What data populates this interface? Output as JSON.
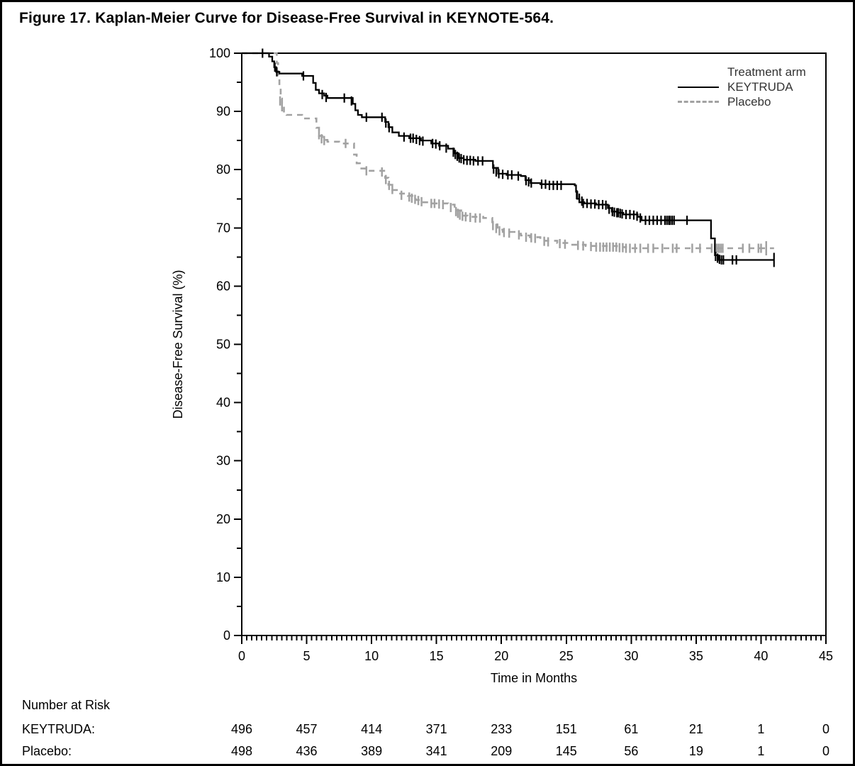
{
  "figure": {
    "title": "Figure 17. Kaplan-Meier Curve for Disease-Free Survival in KEYNOTE-564."
  },
  "chart_data": {
    "type": "line",
    "subtype": "kaplan_meier_step",
    "title": "Figure 17. Kaplan-Meier Curve for Disease-Free Survival in KEYNOTE-564.",
    "xlabel": "Time in Months",
    "ylabel": "Disease-Free Survival (%)",
    "xlim": [
      0,
      45
    ],
    "ylim": [
      0,
      100
    ],
    "x_ticks": [
      0,
      5,
      10,
      15,
      20,
      25,
      30,
      35,
      40,
      45
    ],
    "y_ticks": [
      0,
      10,
      20,
      30,
      40,
      50,
      60,
      70,
      80,
      90,
      100
    ],
    "x_minor_per_major": 13,
    "y_minor_per_major": 2,
    "grid": false,
    "legend": {
      "title": "Treatment arm",
      "position": "top-right-inside",
      "entries": [
        {
          "label": "KEYTRUDA",
          "style": "solid",
          "color": "#000000"
        },
        {
          "label": "Placebo",
          "style": "dashed",
          "color": "#a2a2a2"
        }
      ]
    },
    "series": [
      {
        "name": "KEYTRUDA",
        "color": "#000000",
        "style": "solid",
        "steps": [
          [
            0,
            100
          ],
          [
            1.9,
            100
          ],
          [
            2.1,
            99.4
          ],
          [
            2.35,
            98.6
          ],
          [
            2.5,
            97.6
          ],
          [
            2.65,
            96.8
          ],
          [
            2.9,
            96.5
          ],
          [
            4.55,
            96.5
          ],
          [
            4.65,
            96.1
          ],
          [
            5.35,
            96.1
          ],
          [
            5.5,
            94.9
          ],
          [
            5.7,
            93.7
          ],
          [
            5.95,
            93.1
          ],
          [
            6.35,
            92.7
          ],
          [
            6.6,
            92.3
          ],
          [
            8.4,
            92.3
          ],
          [
            8.55,
            91.3
          ],
          [
            8.75,
            90.2
          ],
          [
            8.95,
            89.4
          ],
          [
            9.25,
            89.0
          ],
          [
            10.85,
            89.0
          ],
          [
            11.05,
            88.2
          ],
          [
            11.3,
            87.3
          ],
          [
            11.6,
            86.4
          ],
          [
            12.1,
            85.8
          ],
          [
            12.9,
            85.4
          ],
          [
            13.8,
            85.0
          ],
          [
            14.6,
            84.5
          ],
          [
            15.2,
            84.1
          ],
          [
            15.9,
            83.6
          ],
          [
            16.35,
            82.8
          ],
          [
            16.7,
            82.0
          ],
          [
            17.1,
            81.7
          ],
          [
            18.0,
            81.5
          ],
          [
            19.35,
            80.3
          ],
          [
            19.75,
            79.3
          ],
          [
            20.4,
            79.1
          ],
          [
            21.5,
            78.9
          ],
          [
            21.85,
            78.2
          ],
          [
            22.25,
            77.7
          ],
          [
            23.0,
            77.5
          ],
          [
            25.65,
            77.3
          ],
          [
            25.75,
            76.2
          ],
          [
            25.85,
            75.0
          ],
          [
            26.0,
            74.4
          ],
          [
            26.4,
            74.2
          ],
          [
            27.3,
            74.0
          ],
          [
            28.2,
            73.4
          ],
          [
            28.5,
            72.8
          ],
          [
            28.9,
            72.6
          ],
          [
            29.4,
            72.3
          ],
          [
            30.5,
            71.9
          ],
          [
            30.8,
            71.3
          ],
          [
            35.95,
            71.3
          ],
          [
            36.15,
            68.2
          ],
          [
            36.45,
            65.3
          ],
          [
            36.7,
            64.5
          ],
          [
            41.0,
            64.5
          ]
        ],
        "censors": [
          [
            1.6,
            100
          ],
          [
            2.55,
            97.6
          ],
          [
            2.7,
            96.8
          ],
          [
            4.75,
            96.1
          ],
          [
            6.2,
            92.9
          ],
          [
            6.5,
            92.4
          ],
          [
            7.9,
            92.3
          ],
          [
            8.45,
            91.8
          ],
          [
            9.6,
            89.0
          ],
          [
            10.8,
            89.0
          ],
          [
            11.1,
            88.0
          ],
          [
            11.35,
            87.2
          ],
          [
            12.5,
            85.6
          ],
          [
            13.0,
            85.4
          ],
          [
            13.2,
            85.4
          ],
          [
            13.45,
            85.2
          ],
          [
            13.7,
            85.0
          ],
          [
            13.95,
            84.9
          ],
          [
            14.7,
            84.5
          ],
          [
            14.95,
            84.4
          ],
          [
            15.25,
            84.1
          ],
          [
            15.75,
            83.7
          ],
          [
            16.3,
            83.0
          ],
          [
            16.45,
            82.6
          ],
          [
            16.6,
            82.3
          ],
          [
            16.75,
            82.0
          ],
          [
            16.9,
            81.9
          ],
          [
            17.1,
            81.7
          ],
          [
            17.35,
            81.6
          ],
          [
            17.6,
            81.6
          ],
          [
            17.85,
            81.5
          ],
          [
            18.2,
            81.5
          ],
          [
            18.55,
            81.5
          ],
          [
            19.4,
            80.1
          ],
          [
            19.6,
            79.6
          ],
          [
            19.8,
            79.3
          ],
          [
            20.1,
            79.2
          ],
          [
            20.5,
            79.1
          ],
          [
            20.8,
            79.1
          ],
          [
            21.3,
            78.9
          ],
          [
            21.9,
            78.1
          ],
          [
            22.1,
            77.9
          ],
          [
            22.3,
            77.7
          ],
          [
            23.1,
            77.5
          ],
          [
            23.4,
            77.5
          ],
          [
            23.7,
            77.3
          ],
          [
            24.0,
            77.3
          ],
          [
            24.3,
            77.3
          ],
          [
            24.6,
            77.3
          ],
          [
            25.8,
            75.7
          ],
          [
            26.0,
            75.1
          ],
          [
            26.2,
            74.6
          ],
          [
            26.3,
            74.2
          ],
          [
            26.6,
            74.2
          ],
          [
            26.9,
            74.1
          ],
          [
            27.2,
            74.1
          ],
          [
            27.5,
            74.0
          ],
          [
            27.8,
            74.0
          ],
          [
            28.05,
            73.9
          ],
          [
            28.3,
            73.2
          ],
          [
            28.55,
            72.8
          ],
          [
            28.7,
            72.7
          ],
          [
            28.9,
            72.6
          ],
          [
            29.0,
            72.6
          ],
          [
            29.15,
            72.5
          ],
          [
            29.3,
            72.4
          ],
          [
            29.6,
            72.3
          ],
          [
            29.9,
            72.3
          ],
          [
            30.2,
            72.2
          ],
          [
            30.45,
            72.0
          ],
          [
            30.7,
            71.7
          ],
          [
            31.1,
            71.3
          ],
          [
            31.4,
            71.3
          ],
          [
            31.7,
            71.3
          ],
          [
            32.0,
            71.3
          ],
          [
            32.3,
            71.3
          ],
          [
            32.6,
            71.3
          ],
          [
            32.75,
            71.3
          ],
          [
            32.9,
            71.3
          ],
          [
            33.0,
            71.3
          ],
          [
            33.15,
            71.3
          ],
          [
            33.3,
            71.3
          ],
          [
            34.3,
            71.3
          ],
          [
            36.5,
            65.1
          ],
          [
            36.65,
            64.8
          ],
          [
            36.8,
            64.6
          ],
          [
            36.95,
            64.5
          ],
          [
            37.1,
            64.5
          ],
          [
            37.8,
            64.5
          ],
          [
            38.1,
            64.5
          ],
          [
            41.0,
            64.5
          ]
        ],
        "end_censor_index": 90
      },
      {
        "name": "Placebo",
        "color": "#a2a2a2",
        "style": "dashed",
        "steps": [
          [
            0,
            100
          ],
          [
            2.55,
            100
          ],
          [
            2.7,
            98.3
          ],
          [
            2.8,
            96.2
          ],
          [
            2.9,
            94.2
          ],
          [
            3.0,
            92.2
          ],
          [
            3.1,
            90.8
          ],
          [
            3.25,
            89.8
          ],
          [
            3.45,
            89.4
          ],
          [
            4.5,
            89.4
          ],
          [
            4.65,
            88.8
          ],
          [
            5.6,
            88.8
          ],
          [
            5.75,
            87.2
          ],
          [
            5.95,
            85.8
          ],
          [
            6.2,
            85.1
          ],
          [
            6.6,
            84.8
          ],
          [
            7.5,
            84.5
          ],
          [
            8.45,
            84.5
          ],
          [
            8.65,
            82.6
          ],
          [
            8.85,
            81.1
          ],
          [
            9.1,
            80.2
          ],
          [
            9.5,
            79.8
          ],
          [
            10.85,
            79.8
          ],
          [
            11.05,
            78.6
          ],
          [
            11.3,
            77.4
          ],
          [
            11.6,
            76.5
          ],
          [
            12.1,
            75.9
          ],
          [
            12.8,
            75.5
          ],
          [
            13.4,
            74.8
          ],
          [
            13.9,
            74.4
          ],
          [
            14.5,
            74.2
          ],
          [
            15.9,
            74.0
          ],
          [
            16.4,
            73.0
          ],
          [
            16.9,
            72.1
          ],
          [
            17.4,
            71.9
          ],
          [
            18.6,
            71.7
          ],
          [
            19.3,
            70.6
          ],
          [
            19.7,
            69.7
          ],
          [
            20.1,
            69.3
          ],
          [
            21.2,
            69.0
          ],
          [
            21.5,
            68.7
          ],
          [
            22.2,
            68.4
          ],
          [
            23.0,
            67.8
          ],
          [
            24.3,
            67.4
          ],
          [
            25.3,
            67.1
          ],
          [
            26.5,
            66.9
          ],
          [
            28.9,
            66.7
          ],
          [
            29.6,
            66.5
          ],
          [
            41.0,
            66.5
          ]
        ],
        "censors": [
          [
            2.95,
            91.8
          ],
          [
            3.1,
            90.8
          ],
          [
            5.95,
            86.0
          ],
          [
            6.15,
            85.3
          ],
          [
            6.35,
            85.0
          ],
          [
            8.0,
            84.5
          ],
          [
            9.6,
            79.8
          ],
          [
            10.8,
            79.6
          ],
          [
            11.1,
            78.3
          ],
          [
            11.35,
            77.3
          ],
          [
            11.6,
            76.6
          ],
          [
            12.3,
            75.6
          ],
          [
            12.9,
            75.3
          ],
          [
            13.1,
            75.1
          ],
          [
            13.35,
            74.9
          ],
          [
            13.6,
            74.7
          ],
          [
            13.85,
            74.5
          ],
          [
            14.6,
            74.2
          ],
          [
            14.85,
            74.2
          ],
          [
            15.2,
            74.1
          ],
          [
            15.5,
            74.0
          ],
          [
            16.1,
            73.5
          ],
          [
            16.5,
            72.8
          ],
          [
            16.65,
            72.5
          ],
          [
            16.8,
            72.2
          ],
          [
            17.0,
            72.0
          ],
          [
            17.25,
            71.9
          ],
          [
            17.6,
            71.8
          ],
          [
            18.0,
            71.7
          ],
          [
            18.35,
            71.7
          ],
          [
            19.35,
            70.4
          ],
          [
            19.6,
            69.9
          ],
          [
            19.85,
            69.5
          ],
          [
            20.2,
            69.2
          ],
          [
            20.6,
            69.1
          ],
          [
            21.35,
            68.8
          ],
          [
            21.9,
            68.4
          ],
          [
            22.3,
            68.3
          ],
          [
            22.6,
            68.2
          ],
          [
            23.3,
            67.7
          ],
          [
            23.6,
            67.6
          ],
          [
            24.5,
            67.3
          ],
          [
            24.9,
            67.2
          ],
          [
            25.9,
            67.0
          ],
          [
            26.3,
            66.9
          ],
          [
            26.9,
            66.8
          ],
          [
            27.3,
            66.7
          ],
          [
            27.6,
            66.7
          ],
          [
            27.85,
            66.7
          ],
          [
            28.1,
            66.7
          ],
          [
            28.35,
            66.7
          ],
          [
            28.6,
            66.7
          ],
          [
            28.85,
            66.7
          ],
          [
            29.1,
            66.6
          ],
          [
            29.35,
            66.6
          ],
          [
            29.6,
            66.5
          ],
          [
            29.9,
            66.5
          ],
          [
            30.3,
            66.5
          ],
          [
            30.7,
            66.5
          ],
          [
            31.3,
            66.5
          ],
          [
            31.7,
            66.5
          ],
          [
            32.4,
            66.5
          ],
          [
            33.2,
            66.5
          ],
          [
            33.5,
            66.5
          ],
          [
            34.7,
            66.5
          ],
          [
            35.3,
            66.5
          ],
          [
            36.2,
            66.5
          ],
          [
            36.45,
            66.5
          ],
          [
            36.6,
            66.5
          ],
          [
            36.75,
            66.5
          ],
          [
            36.9,
            66.5
          ],
          [
            37.05,
            66.5
          ],
          [
            38.6,
            66.5
          ],
          [
            39.1,
            66.5
          ],
          [
            39.8,
            66.5
          ],
          [
            40.0,
            66.5
          ],
          [
            40.4,
            66.5
          ]
        ],
        "end_censor_index": 76
      }
    ]
  },
  "risk_table": {
    "heading": "Number at Risk",
    "time_points": [
      0,
      5,
      10,
      15,
      20,
      25,
      30,
      35,
      40,
      45
    ],
    "rows": [
      {
        "label": "KEYTRUDA:",
        "values": [
          "496",
          "457",
          "414",
          "371",
          "233",
          "151",
          "61",
          "21",
          "1",
          "0"
        ]
      },
      {
        "label": "Placebo:",
        "values": [
          "498",
          "436",
          "389",
          "341",
          "209",
          "145",
          "56",
          "19",
          "1",
          "0"
        ]
      }
    ]
  }
}
